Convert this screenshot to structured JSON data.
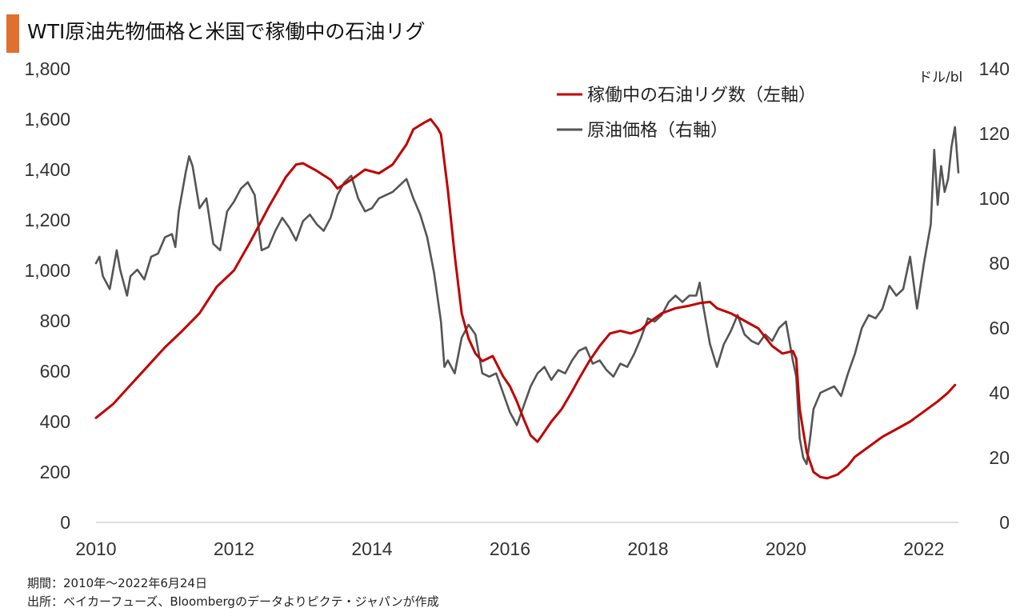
{
  "title": "WTI原油先物価格と米国で稼働中の石油リグ",
  "colors": {
    "accent": "#e07030",
    "rig": "#c00000",
    "oil": "#555555"
  },
  "footer": {
    "period": "期間：2010年～2022年6月24日",
    "source": "出所：ベイカーフューズ、Bloombergのデータよりピクテ・ジャパンが作成"
  },
  "chart_data": {
    "type": "line",
    "x_range": [
      2010.0,
      2022.5
    ],
    "x_ticks": [
      "2010",
      "2012",
      "2014",
      "2016",
      "2018",
      "2020",
      "2022"
    ],
    "y_left": {
      "range": [
        0,
        1800
      ],
      "ticks": [
        "0",
        "200",
        "400",
        "600",
        "800",
        "1,000",
        "1,200",
        "1,400",
        "1,600",
        "1,800"
      ]
    },
    "y_right": {
      "range": [
        0,
        140
      ],
      "ticks": [
        "0",
        "20",
        "40",
        "60",
        "80",
        "100",
        "120",
        "140"
      ],
      "unit": "ドル/bl"
    },
    "grid": false,
    "legend_position": "top-right",
    "series": [
      {
        "name": "稼働中の石油リグ数（左軸）",
        "axis": "left",
        "points": [
          [
            2010.0,
            415
          ],
          [
            2010.25,
            470
          ],
          [
            2010.5,
            545
          ],
          [
            2010.75,
            620
          ],
          [
            2011.0,
            695
          ],
          [
            2011.25,
            760
          ],
          [
            2011.5,
            830
          ],
          [
            2011.75,
            935
          ],
          [
            2012.0,
            1000
          ],
          [
            2012.25,
            1120
          ],
          [
            2012.5,
            1250
          ],
          [
            2012.75,
            1370
          ],
          [
            2012.9,
            1420
          ],
          [
            2013.0,
            1425
          ],
          [
            2013.2,
            1395
          ],
          [
            2013.4,
            1360
          ],
          [
            2013.5,
            1325
          ],
          [
            2013.7,
            1360
          ],
          [
            2013.9,
            1400
          ],
          [
            2014.1,
            1385
          ],
          [
            2014.3,
            1420
          ],
          [
            2014.5,
            1500
          ],
          [
            2014.6,
            1560
          ],
          [
            2014.75,
            1585
          ],
          [
            2014.85,
            1600
          ],
          [
            2014.95,
            1565
          ],
          [
            2015.0,
            1540
          ],
          [
            2015.1,
            1320
          ],
          [
            2015.2,
            1060
          ],
          [
            2015.3,
            830
          ],
          [
            2015.4,
            730
          ],
          [
            2015.5,
            670
          ],
          [
            2015.6,
            640
          ],
          [
            2015.75,
            660
          ],
          [
            2015.9,
            580
          ],
          [
            2016.0,
            540
          ],
          [
            2016.1,
            480
          ],
          [
            2016.2,
            410
          ],
          [
            2016.3,
            345
          ],
          [
            2016.4,
            320
          ],
          [
            2016.5,
            360
          ],
          [
            2016.6,
            400
          ],
          [
            2016.75,
            450
          ],
          [
            2016.9,
            520
          ],
          [
            2017.0,
            570
          ],
          [
            2017.15,
            640
          ],
          [
            2017.3,
            700
          ],
          [
            2017.45,
            750
          ],
          [
            2017.6,
            760
          ],
          [
            2017.75,
            750
          ],
          [
            2017.9,
            765
          ],
          [
            2018.0,
            790
          ],
          [
            2018.2,
            830
          ],
          [
            2018.4,
            850
          ],
          [
            2018.6,
            860
          ],
          [
            2018.75,
            870
          ],
          [
            2018.9,
            875
          ],
          [
            2019.0,
            850
          ],
          [
            2019.2,
            830
          ],
          [
            2019.4,
            800
          ],
          [
            2019.6,
            770
          ],
          [
            2019.8,
            700
          ],
          [
            2019.95,
            670
          ],
          [
            2020.1,
            680
          ],
          [
            2020.15,
            650
          ],
          [
            2020.2,
            450
          ],
          [
            2020.3,
            280
          ],
          [
            2020.4,
            200
          ],
          [
            2020.5,
            180
          ],
          [
            2020.6,
            175
          ],
          [
            2020.75,
            190
          ],
          [
            2020.9,
            225
          ],
          [
            2021.0,
            260
          ],
          [
            2021.2,
            300
          ],
          [
            2021.4,
            340
          ],
          [
            2021.6,
            370
          ],
          [
            2021.8,
            400
          ],
          [
            2022.0,
            440
          ],
          [
            2022.2,
            480
          ],
          [
            2022.35,
            515
          ],
          [
            2022.45,
            545
          ]
        ]
      },
      {
        "name": "原油価格（右軸）",
        "axis": "right",
        "points": [
          [
            2010.0,
            80
          ],
          [
            2010.05,
            82
          ],
          [
            2010.1,
            76
          ],
          [
            2010.2,
            72
          ],
          [
            2010.3,
            84
          ],
          [
            2010.35,
            78
          ],
          [
            2010.4,
            74
          ],
          [
            2010.45,
            70
          ],
          [
            2010.5,
            76
          ],
          [
            2010.6,
            78
          ],
          [
            2010.7,
            75
          ],
          [
            2010.8,
            82
          ],
          [
            2010.9,
            83
          ],
          [
            2011.0,
            88
          ],
          [
            2011.1,
            89
          ],
          [
            2011.15,
            85
          ],
          [
            2011.2,
            96
          ],
          [
            2011.3,
            108
          ],
          [
            2011.35,
            113
          ],
          [
            2011.4,
            110
          ],
          [
            2011.5,
            97
          ],
          [
            2011.6,
            100
          ],
          [
            2011.7,
            86
          ],
          [
            2011.8,
            84
          ],
          [
            2011.9,
            96
          ],
          [
            2012.0,
            99
          ],
          [
            2012.1,
            103
          ],
          [
            2012.2,
            105
          ],
          [
            2012.3,
            101
          ],
          [
            2012.35,
            92
          ],
          [
            2012.4,
            84
          ],
          [
            2012.5,
            85
          ],
          [
            2012.6,
            90
          ],
          [
            2012.7,
            94
          ],
          [
            2012.8,
            91
          ],
          [
            2012.9,
            87
          ],
          [
            2013.0,
            93
          ],
          [
            2013.1,
            95
          ],
          [
            2013.2,
            92
          ],
          [
            2013.3,
            90
          ],
          [
            2013.4,
            94
          ],
          [
            2013.5,
            101
          ],
          [
            2013.6,
            105
          ],
          [
            2013.7,
            107
          ],
          [
            2013.8,
            100
          ],
          [
            2013.9,
            96
          ],
          [
            2014.0,
            97
          ],
          [
            2014.1,
            100
          ],
          [
            2014.2,
            101
          ],
          [
            2014.3,
            102
          ],
          [
            2014.4,
            104
          ],
          [
            2014.5,
            106
          ],
          [
            2014.6,
            100
          ],
          [
            2014.7,
            95
          ],
          [
            2014.8,
            88
          ],
          [
            2014.9,
            77
          ],
          [
            2015.0,
            62
          ],
          [
            2015.05,
            48
          ],
          [
            2015.1,
            50
          ],
          [
            2015.2,
            46
          ],
          [
            2015.3,
            57
          ],
          [
            2015.4,
            61
          ],
          [
            2015.5,
            58
          ],
          [
            2015.6,
            46
          ],
          [
            2015.7,
            45
          ],
          [
            2015.8,
            46
          ],
          [
            2015.9,
            40
          ],
          [
            2016.0,
            34
          ],
          [
            2016.05,
            32
          ],
          [
            2016.1,
            30
          ],
          [
            2016.2,
            36
          ],
          [
            2016.3,
            42
          ],
          [
            2016.4,
            46
          ],
          [
            2016.5,
            48
          ],
          [
            2016.6,
            44
          ],
          [
            2016.7,
            47
          ],
          [
            2016.8,
            46
          ],
          [
            2016.9,
            50
          ],
          [
            2017.0,
            53
          ],
          [
            2017.1,
            54
          ],
          [
            2017.2,
            49
          ],
          [
            2017.3,
            50
          ],
          [
            2017.4,
            47
          ],
          [
            2017.5,
            45
          ],
          [
            2017.6,
            49
          ],
          [
            2017.7,
            48
          ],
          [
            2017.8,
            52
          ],
          [
            2017.9,
            57
          ],
          [
            2018.0,
            63
          ],
          [
            2018.1,
            62
          ],
          [
            2018.2,
            64
          ],
          [
            2018.3,
            68
          ],
          [
            2018.4,
            70
          ],
          [
            2018.5,
            68
          ],
          [
            2018.6,
            70
          ],
          [
            2018.7,
            70
          ],
          [
            2018.75,
            74
          ],
          [
            2018.8,
            67
          ],
          [
            2018.9,
            55
          ],
          [
            2019.0,
            48
          ],
          [
            2019.1,
            55
          ],
          [
            2019.2,
            59
          ],
          [
            2019.3,
            64
          ],
          [
            2019.4,
            58
          ],
          [
            2019.5,
            56
          ],
          [
            2019.6,
            55
          ],
          [
            2019.7,
            58
          ],
          [
            2019.8,
            56
          ],
          [
            2019.9,
            60
          ],
          [
            2020.0,
            62
          ],
          [
            2020.05,
            56
          ],
          [
            2020.1,
            50
          ],
          [
            2020.15,
            45
          ],
          [
            2020.2,
            26
          ],
          [
            2020.25,
            20
          ],
          [
            2020.3,
            18
          ],
          [
            2020.35,
            26
          ],
          [
            2020.4,
            35
          ],
          [
            2020.5,
            40
          ],
          [
            2020.6,
            41
          ],
          [
            2020.7,
            42
          ],
          [
            2020.8,
            39
          ],
          [
            2020.9,
            46
          ],
          [
            2021.0,
            52
          ],
          [
            2021.1,
            60
          ],
          [
            2021.2,
            64
          ],
          [
            2021.3,
            63
          ],
          [
            2021.4,
            66
          ],
          [
            2021.5,
            73
          ],
          [
            2021.6,
            70
          ],
          [
            2021.7,
            72
          ],
          [
            2021.8,
            82
          ],
          [
            2021.9,
            66
          ],
          [
            2022.0,
            80
          ],
          [
            2022.1,
            92
          ],
          [
            2022.15,
            115
          ],
          [
            2022.2,
            98
          ],
          [
            2022.25,
            110
          ],
          [
            2022.3,
            102
          ],
          [
            2022.35,
            106
          ],
          [
            2022.4,
            116
          ],
          [
            2022.45,
            122
          ],
          [
            2022.5,
            108
          ]
        ]
      }
    ]
  }
}
